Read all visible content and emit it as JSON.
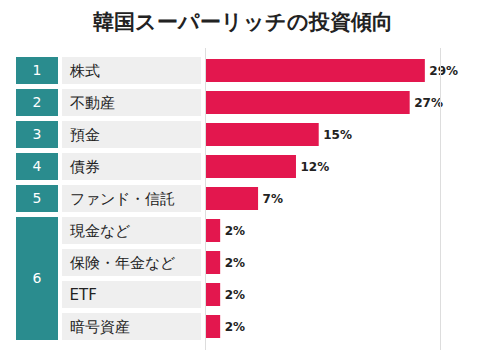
{
  "chart_data": {
    "type": "bar",
    "title": "韓国スーパーリッチの投資傾向",
    "orientation": "horizontal",
    "categories": [
      "株式",
      "不動産",
      "預金",
      "債券",
      "ファンド・信託",
      "現金など",
      "保険・年金など",
      "ETF",
      "暗号資産"
    ],
    "ranks": [
      1,
      2,
      3,
      4,
      5,
      6,
      6,
      6,
      6
    ],
    "values": [
      29,
      27,
      15,
      12,
      7,
      2,
      2,
      2,
      2
    ],
    "value_labels": [
      "29%",
      "27%",
      "15%",
      "12%",
      "7%",
      "2%",
      "2%",
      "2%",
      "2%"
    ],
    "color": "#e3174e",
    "data_labels": true,
    "tick_labels": "y",
    "xlim": [
      0,
      31
    ],
    "xticks": []
  }
}
